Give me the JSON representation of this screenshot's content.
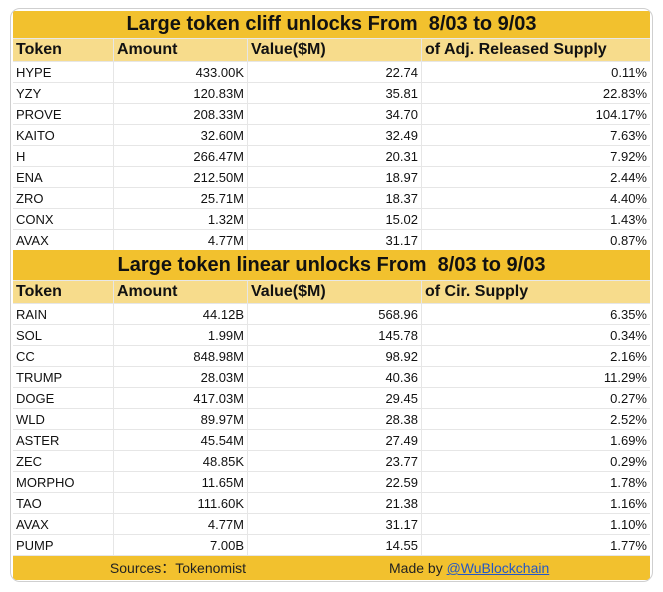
{
  "cliff": {
    "title": "Large token cliff unlocks From  8/03 to 9/03",
    "headers": [
      "Token",
      "Amount",
      "Value($M)",
      "of Adj. Released Supply"
    ],
    "rows": [
      [
        "HYPE",
        "433.00K",
        "22.74",
        "0.11%"
      ],
      [
        "YZY",
        "120.83M",
        "35.81",
        "22.83%"
      ],
      [
        "PROVE",
        "208.33M",
        "34.70",
        "104.17%"
      ],
      [
        "KAITO",
        "32.60M",
        "32.49",
        "7.63%"
      ],
      [
        "H",
        "266.47M",
        "20.31",
        "7.92%"
      ],
      [
        "ENA",
        "212.50M",
        "18.97",
        "2.44%"
      ],
      [
        "ZRO",
        "25.71M",
        "18.37",
        "4.40%"
      ],
      [
        "CONX",
        "1.32M",
        "15.02",
        "1.43%"
      ],
      [
        "AVAX",
        "4.77M",
        "31.17",
        "0.87%"
      ]
    ]
  },
  "linear": {
    "title": "Large token linear unlocks From  8/03 to 9/03",
    "headers": [
      "Token",
      "Amount",
      "Value($M)",
      "of Cir. Supply"
    ],
    "rows": [
      [
        "RAIN",
        "44.12B",
        "568.96",
        "6.35%"
      ],
      [
        "SOL",
        "1.99M",
        "145.78",
        "0.34%"
      ],
      [
        "CC",
        "848.98M",
        "98.92",
        "2.16%"
      ],
      [
        "TRUMP",
        "28.03M",
        "40.36",
        "11.29%"
      ],
      [
        "DOGE",
        "417.03M",
        "29.45",
        "0.27%"
      ],
      [
        "WLD",
        "89.97M",
        "28.38",
        "2.52%"
      ],
      [
        "ASTER",
        "45.54M",
        "27.49",
        "1.69%"
      ],
      [
        "ZEC",
        "48.85K",
        "23.77",
        "0.29%"
      ],
      [
        "MORPHO",
        "11.65M",
        "22.59",
        "1.78%"
      ],
      [
        "TAO",
        "111.60K",
        "21.38",
        "1.16%"
      ],
      [
        "AVAX",
        "4.77M",
        "31.17",
        "1.10%"
      ],
      [
        "PUMP",
        "7.00B",
        "14.55",
        "1.77%"
      ]
    ]
  },
  "footer": {
    "sources": "Sources：Tokenomist",
    "made_by": "Made by ",
    "handle": "@WuBlockchain"
  }
}
